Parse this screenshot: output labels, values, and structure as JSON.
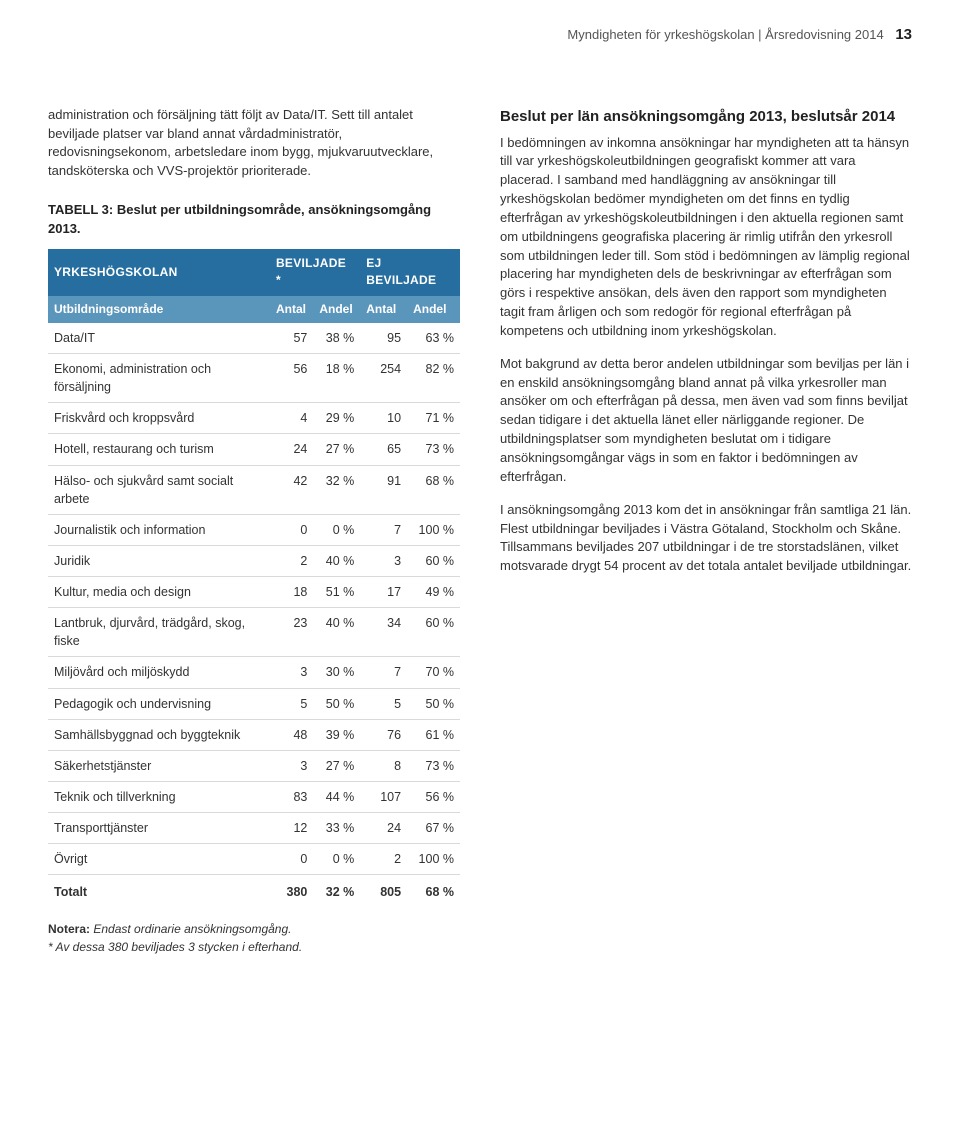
{
  "header": {
    "breadcrumb": "Myndigheten för yrkeshögskolan | Årsredovisning 2014",
    "page_number": "13"
  },
  "left": {
    "intro": "administration och försäljning tätt följt av Data/IT. Sett till antalet beviljade platser var bland annat vårdadministratör, redovisningsekonom, arbetsledare inom bygg, mjukvaruutvecklare, tandsköterska och VVS-projektör prioriterade.",
    "table_title": "TABELL 3: Beslut per utbildningsområde, ansökningsomgång 2013.",
    "table": {
      "group_headers": [
        "YRKESHÖGSKOLAN",
        "BEVILJADE *",
        "EJ BEVILJADE"
      ],
      "sub_headers": [
        "Utbildningsområde",
        "Antal",
        "Andel",
        "Antal",
        "Andel"
      ],
      "rows": [
        {
          "label": "Data/IT",
          "b_antal": "57",
          "b_andel": "38 %",
          "e_antal": "95",
          "e_andel": "63 %"
        },
        {
          "label": "Ekonomi, administration och försäljning",
          "b_antal": "56",
          "b_andel": "18 %",
          "e_antal": "254",
          "e_andel": "82 %"
        },
        {
          "label": "Friskvård och kroppsvård",
          "b_antal": "4",
          "b_andel": "29 %",
          "e_antal": "10",
          "e_andel": "71 %"
        },
        {
          "label": "Hotell, restaurang och turism",
          "b_antal": "24",
          "b_andel": "27 %",
          "e_antal": "65",
          "e_andel": "73 %"
        },
        {
          "label": "Hälso- och sjukvård samt socialt arbete",
          "b_antal": "42",
          "b_andel": "32 %",
          "e_antal": "91",
          "e_andel": "68 %"
        },
        {
          "label": "Journalistik och information",
          "b_antal": "0",
          "b_andel": "0 %",
          "e_antal": "7",
          "e_andel": "100 %"
        },
        {
          "label": "Juridik",
          "b_antal": "2",
          "b_andel": "40 %",
          "e_antal": "3",
          "e_andel": "60 %"
        },
        {
          "label": "Kultur, media och design",
          "b_antal": "18",
          "b_andel": "51 %",
          "e_antal": "17",
          "e_andel": "49 %"
        },
        {
          "label": "Lantbruk, djurvård, trädgård, skog, fiske",
          "b_antal": "23",
          "b_andel": "40 %",
          "e_antal": "34",
          "e_andel": "60 %"
        },
        {
          "label": "Miljövård och miljöskydd",
          "b_antal": "3",
          "b_andel": "30 %",
          "e_antal": "7",
          "e_andel": "70 %"
        },
        {
          "label": "Pedagogik och undervisning",
          "b_antal": "5",
          "b_andel": "50 %",
          "e_antal": "5",
          "e_andel": "50 %"
        },
        {
          "label": "Samhällsbyggnad och byggteknik",
          "b_antal": "48",
          "b_andel": "39 %",
          "e_antal": "76",
          "e_andel": "61 %"
        },
        {
          "label": "Säkerhetstjänster",
          "b_antal": "3",
          "b_andel": "27 %",
          "e_antal": "8",
          "e_andel": "73 %"
        },
        {
          "label": "Teknik och tillverkning",
          "b_antal": "83",
          "b_andel": "44 %",
          "e_antal": "107",
          "e_andel": "56 %"
        },
        {
          "label": "Transporttjänster",
          "b_antal": "12",
          "b_andel": "33 %",
          "e_antal": "24",
          "e_andel": "67 %"
        },
        {
          "label": "Övrigt",
          "b_antal": "0",
          "b_andel": "0 %",
          "e_antal": "2",
          "e_andel": "100 %"
        }
      ],
      "total": {
        "label": "Totalt",
        "b_antal": "380",
        "b_andel": "32 %",
        "e_antal": "805",
        "e_andel": "68 %"
      },
      "header_bg_primary": "#266e9f",
      "header_bg_sub": "#5a95bb",
      "row_border_color": "#d9d9d9"
    },
    "footnote_label": "Notera:",
    "footnote_text": "Endast ordinarie ansökningsomgång.",
    "footnote_star": "* Av dessa 380 beviljades 3 stycken i efterhand."
  },
  "right": {
    "heading": "Beslut per län ansökningsomgång 2013, beslutsår 2014",
    "p1": "I bedömningen av inkomna ansökningar har myndigheten att ta hänsyn till var yrkeshögskoleutbildningen geografiskt kommer att vara placerad. I samband med handläggning av ansökningar till yrkeshögskolan bedömer myndigheten om det finns en tydlig efterfrågan av yrkeshögskoleutbildningen i den aktuella regionen samt om utbildningens geografiska placering är rimlig utifrån den yrkesroll som utbildningen leder till. Som stöd i bedömningen av lämplig regional placering har myndigheten dels de beskrivningar av efterfrågan som görs i respektive ansökan, dels även den rapport som myndigheten tagit fram årligen och som redogör för regional efterfrågan på kompetens och utbildning inom yrkeshögskolan.",
    "p2": "Mot bakgrund av detta beror andelen utbildningar som beviljas per län i en enskild ansökningsomgång bland annat på vilka yrkesroller man ansöker om och efterfrågan på dessa, men även vad som finns beviljat sedan tidigare i det aktuella länet eller närliggande regioner. De utbildningsplatser som myndigheten beslutat om i tidigare ansökningsomgångar vägs in som en faktor i bedömningen av efterfrågan.",
    "p3": "I ansökningsomgång 2013 kom det in ansökningar från samtliga 21 län. Flest utbildningar beviljades i Västra Götaland, Stockholm och Skåne. Tillsammans beviljades 207 utbildningar i de tre storstadslänen, vilket motsvarade drygt 54 procent av det totala antalet beviljade utbildningar."
  }
}
